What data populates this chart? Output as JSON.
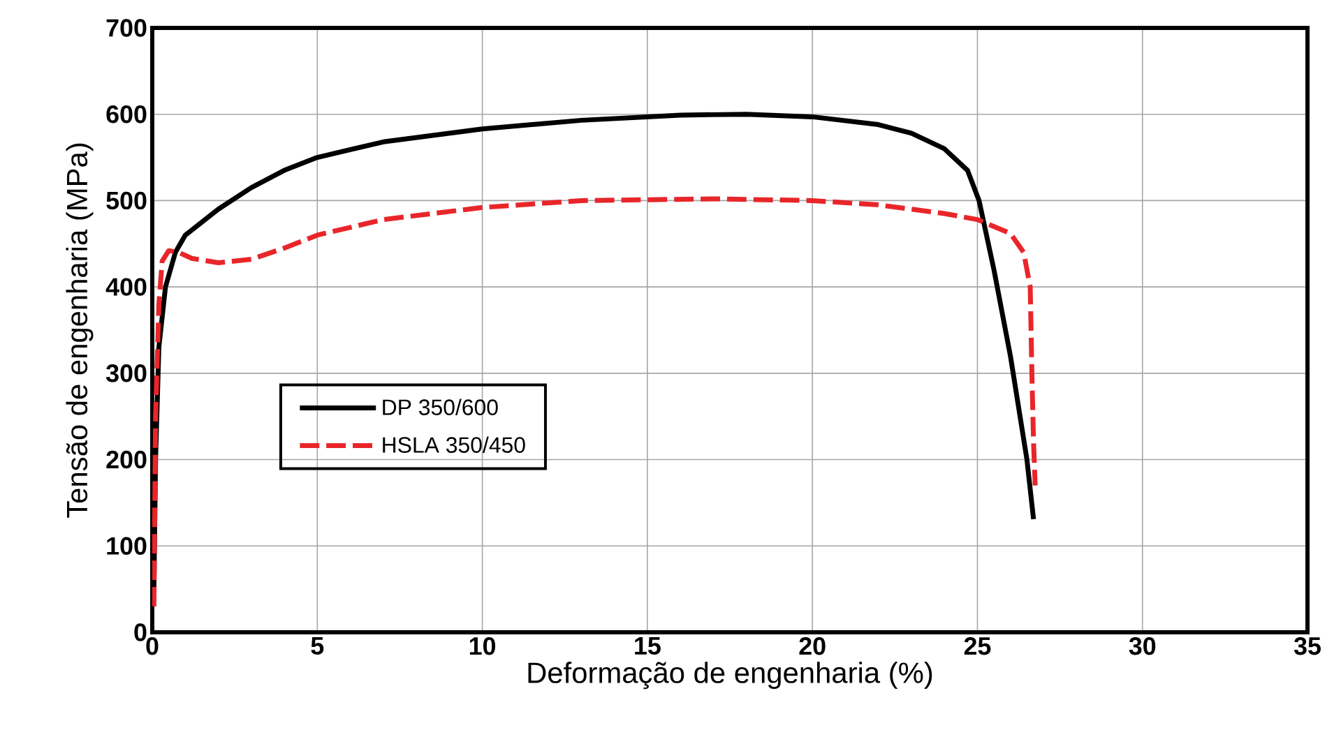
{
  "chart_data": {
    "type": "line",
    "xlabel": "Deformação de engenharia (%)",
    "ylabel": "Tensão de engenharia (MPa)",
    "xlim": [
      0,
      35
    ],
    "ylim": [
      0,
      700
    ],
    "xticks": [
      0,
      5,
      10,
      15,
      20,
      25,
      30,
      35
    ],
    "yticks": [
      0,
      100,
      200,
      300,
      400,
      500,
      600,
      700
    ],
    "grid": true,
    "legend": "left",
    "marker": "none",
    "series": [
      {
        "name": "DP 350/600",
        "color": "#000000",
        "line_style": "solid",
        "x": [
          0.05,
          0.1,
          0.2,
          0.4,
          0.7,
          1,
          2,
          3,
          4,
          5,
          7,
          10,
          13,
          16,
          18,
          20,
          22,
          23,
          24,
          24.7,
          25.05,
          25.5,
          26,
          26.5,
          26.7
        ],
        "values": [
          50,
          200,
          330,
          400,
          440,
          460,
          490,
          515,
          535,
          550,
          568,
          583,
          593,
          599,
          600,
          597,
          588,
          578,
          560,
          535,
          500,
          420,
          320,
          200,
          131
        ]
      },
      {
        "name": "HSLA 350/450",
        "color": "#e8262a",
        "line_style": "dashed",
        "x": [
          0.05,
          0.1,
          0.2,
          0.3,
          0.5,
          0.8,
          1.2,
          2,
          3,
          4,
          5,
          7,
          10,
          13,
          17,
          20,
          22,
          24,
          25,
          26,
          26.4,
          26.6,
          26.65,
          26.7,
          26.75
        ],
        "values": [
          30,
          250,
          380,
          430,
          442,
          440,
          433,
          428,
          432,
          445,
          460,
          478,
          492,
          500,
          502,
          500,
          495,
          485,
          478,
          462,
          440,
          400,
          300,
          220,
          170
        ]
      }
    ]
  }
}
